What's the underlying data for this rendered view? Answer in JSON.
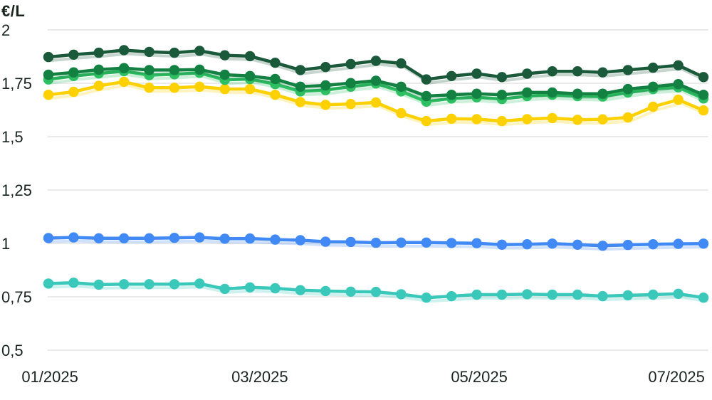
{
  "colors": {
    "background": "#ffffff",
    "grid": "#e3e3e3",
    "text": "#1a241f"
  },
  "chart_data": {
    "type": "line",
    "title": "",
    "unit": "€/L",
    "legend": "none",
    "grid": true,
    "marker": "circle",
    "x_axis": {
      "tick_labels": [
        "01/2025",
        "03/2025",
        "05/2025",
        "07/2025"
      ],
      "tick_positions": [
        0.06,
        8.39,
        17.1,
        24.93
      ],
      "points_count": 27
    },
    "y_axis": {
      "decimal_separator": ",",
      "range": [
        0.5,
        2
      ],
      "ticks": [
        {
          "label": "2",
          "value": 2
        },
        {
          "label": "1,75",
          "value": 1.75
        },
        {
          "label": "1,5",
          "value": 1.5
        },
        {
          "label": "1,25",
          "value": 1.25
        },
        {
          "label": "1",
          "value": 1
        },
        {
          "label": "0,75",
          "value": 0.75
        },
        {
          "label": "0,5",
          "value": 0.5
        }
      ]
    },
    "series": [
      {
        "name": "dark-green-line",
        "color": "#1a593a",
        "values": [
          1.873,
          1.884,
          1.893,
          1.905,
          1.897,
          1.893,
          1.902,
          1.881,
          1.877,
          1.846,
          1.812,
          1.826,
          1.84,
          1.855,
          1.843,
          1.768,
          1.784,
          1.795,
          1.779,
          1.795,
          1.806,
          1.806,
          1.801,
          1.812,
          1.823,
          1.834,
          1.779
        ]
      },
      {
        "name": "green-line",
        "color": "#128142",
        "values": [
          1.79,
          1.801,
          1.814,
          1.821,
          1.812,
          1.812,
          1.814,
          1.79,
          1.784,
          1.77,
          1.734,
          1.74,
          1.751,
          1.762,
          1.734,
          1.69,
          1.696,
          1.701,
          1.696,
          1.707,
          1.707,
          1.701,
          1.701,
          1.723,
          1.734,
          1.746,
          1.696
        ]
      },
      {
        "name": "light-green-line",
        "color": "#2fbf63",
        "values": [
          1.768,
          1.784,
          1.796,
          1.807,
          1.788,
          1.792,
          1.799,
          1.766,
          1.77,
          1.746,
          1.712,
          1.718,
          1.734,
          1.749,
          1.712,
          1.664,
          1.679,
          1.684,
          1.676,
          1.69,
          1.696,
          1.69,
          1.688,
          1.707,
          1.723,
          1.731,
          1.679
        ]
      },
      {
        "name": "yellow-line",
        "color": "#fdd100",
        "values": [
          1.696,
          1.71,
          1.738,
          1.757,
          1.729,
          1.729,
          1.734,
          1.723,
          1.723,
          1.696,
          1.662,
          1.649,
          1.653,
          1.66,
          1.61,
          1.573,
          1.584,
          1.582,
          1.573,
          1.582,
          1.587,
          1.579,
          1.581,
          1.59,
          1.64,
          1.673,
          1.623
        ]
      },
      {
        "name": "blue-line",
        "color": "#4189f4",
        "values": [
          1.025,
          1.028,
          1.024,
          1.024,
          1.024,
          1.026,
          1.028,
          1.022,
          1.023,
          1.018,
          1.015,
          1.008,
          1.007,
          1.003,
          1.004,
          1.004,
          1.002,
          1.001,
          0.994,
          0.996,
          0.999,
          0.994,
          0.989,
          0.993,
          0.996,
          0.998,
          0.999
        ]
      },
      {
        "name": "teal-line",
        "color": "#39c8ba",
        "values": [
          0.812,
          0.816,
          0.807,
          0.809,
          0.809,
          0.809,
          0.812,
          0.787,
          0.794,
          0.79,
          0.781,
          0.777,
          0.774,
          0.773,
          0.762,
          0.746,
          0.753,
          0.76,
          0.76,
          0.762,
          0.76,
          0.76,
          0.753,
          0.757,
          0.76,
          0.764,
          0.746
        ]
      }
    ]
  }
}
